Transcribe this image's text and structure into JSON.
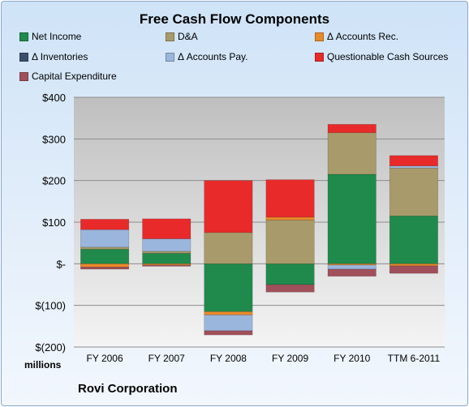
{
  "chart_data": {
    "type": "bar",
    "stacked": true,
    "title": "Free Cash Flow Components",
    "company": "Rovi Corporation",
    "units_label": "millions",
    "categories": [
      "FY 2006",
      "FY 2007",
      "FY 2008",
      "FY 2009",
      "FY 2010",
      "TTM 6-2011"
    ],
    "ylim": [
      -200,
      400
    ],
    "yticks": [
      {
        "value": 400,
        "label": "$400"
      },
      {
        "value": 300,
        "label": "$300"
      },
      {
        "value": 200,
        "label": "$200"
      },
      {
        "value": 100,
        "label": "$100"
      },
      {
        "value": 0,
        "label": "$-"
      },
      {
        "value": -100,
        "label": "$(100)"
      },
      {
        "value": -200,
        "label": "$(200)"
      }
    ],
    "grid": true,
    "legend_position": "top",
    "series": [
      {
        "name": "Net Income",
        "color": "#1f8a4c",
        "values": [
          35,
          25,
          -115,
          -50,
          215,
          115
        ]
      },
      {
        "name": "D&A",
        "color": "#a89a6a",
        "values": [
          5,
          5,
          75,
          105,
          100,
          115
        ]
      },
      {
        "name": "Δ Accounts Rec.",
        "color": "#e88a2a",
        "values": [
          -8,
          -3,
          -8,
          7,
          -3,
          -5
        ]
      },
      {
        "name": "Δ Inventories",
        "color": "#3a4f6a",
        "values": [
          0,
          0,
          0,
          0,
          0,
          0
        ]
      },
      {
        "name": "Δ Accounts Pay.",
        "color": "#9ab6dc",
        "values": [
          42,
          30,
          -38,
          0,
          -10,
          5
        ]
      },
      {
        "name": "Questionable Cash Sources",
        "color": "#e82a2a",
        "values": [
          25,
          48,
          125,
          90,
          20,
          25
        ]
      },
      {
        "name": "Capital Expenditure",
        "color": "#a0505a",
        "values": [
          -5,
          -3,
          -10,
          -18,
          -17,
          -18
        ]
      }
    ]
  }
}
